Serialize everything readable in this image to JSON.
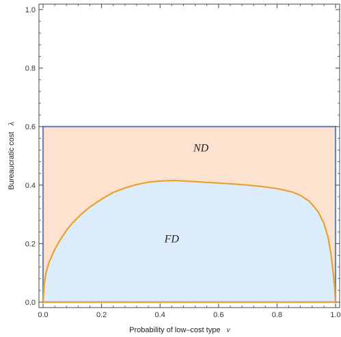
{
  "chart_data": {
    "type": "area",
    "title": "",
    "xlabel": {
      "text": "Probability of low–cost type",
      "symbol": "v"
    },
    "ylabel": {
      "text": "Bureaucratic cost",
      "symbol": "λ"
    },
    "xlim": [
      0,
      1
    ],
    "ylim": [
      0,
      1
    ],
    "x_ticks": [
      "0.0",
      "0.2",
      "0.4",
      "0.6",
      "0.8",
      "1.0"
    ],
    "y_ticks": [
      "0.0",
      "0.2",
      "0.4",
      "0.6",
      "0.8",
      "1.0"
    ],
    "grid": false,
    "region_labels": [
      {
        "text": "ND",
        "x": 0.54,
        "y": 0.515
      },
      {
        "text": "FD",
        "x": 0.44,
        "y": 0.205
      }
    ],
    "rectangle": {
      "x": [
        0,
        1
      ],
      "y": [
        0,
        0.6
      ],
      "fill": "#fde3cf",
      "stroke": "#6a86b2"
    },
    "series": [
      {
        "fill": "#dcecfa",
        "stroke": "#e8a030",
        "points": [
          [
            0.0,
            0.0
          ],
          [
            0.004,
            0.06
          ],
          [
            0.01,
            0.1
          ],
          [
            0.02,
            0.135
          ],
          [
            0.04,
            0.18
          ],
          [
            0.06,
            0.215
          ],
          [
            0.08,
            0.245
          ],
          [
            0.1,
            0.27
          ],
          [
            0.13,
            0.3
          ],
          [
            0.16,
            0.325
          ],
          [
            0.2,
            0.352
          ],
          [
            0.24,
            0.375
          ],
          [
            0.28,
            0.39
          ],
          [
            0.32,
            0.402
          ],
          [
            0.36,
            0.41
          ],
          [
            0.4,
            0.414
          ],
          [
            0.45,
            0.416
          ],
          [
            0.5,
            0.413
          ],
          [
            0.55,
            0.41
          ],
          [
            0.6,
            0.407
          ],
          [
            0.65,
            0.404
          ],
          [
            0.7,
            0.4
          ],
          [
            0.75,
            0.395
          ],
          [
            0.8,
            0.388
          ],
          [
            0.85,
            0.377
          ],
          [
            0.88,
            0.365
          ],
          [
            0.91,
            0.345
          ],
          [
            0.94,
            0.31
          ],
          [
            0.96,
            0.27
          ],
          [
            0.975,
            0.22
          ],
          [
            0.985,
            0.16
          ],
          [
            0.992,
            0.1
          ],
          [
            0.997,
            0.05
          ],
          [
            1.0,
            0.0
          ]
        ]
      }
    ]
  }
}
